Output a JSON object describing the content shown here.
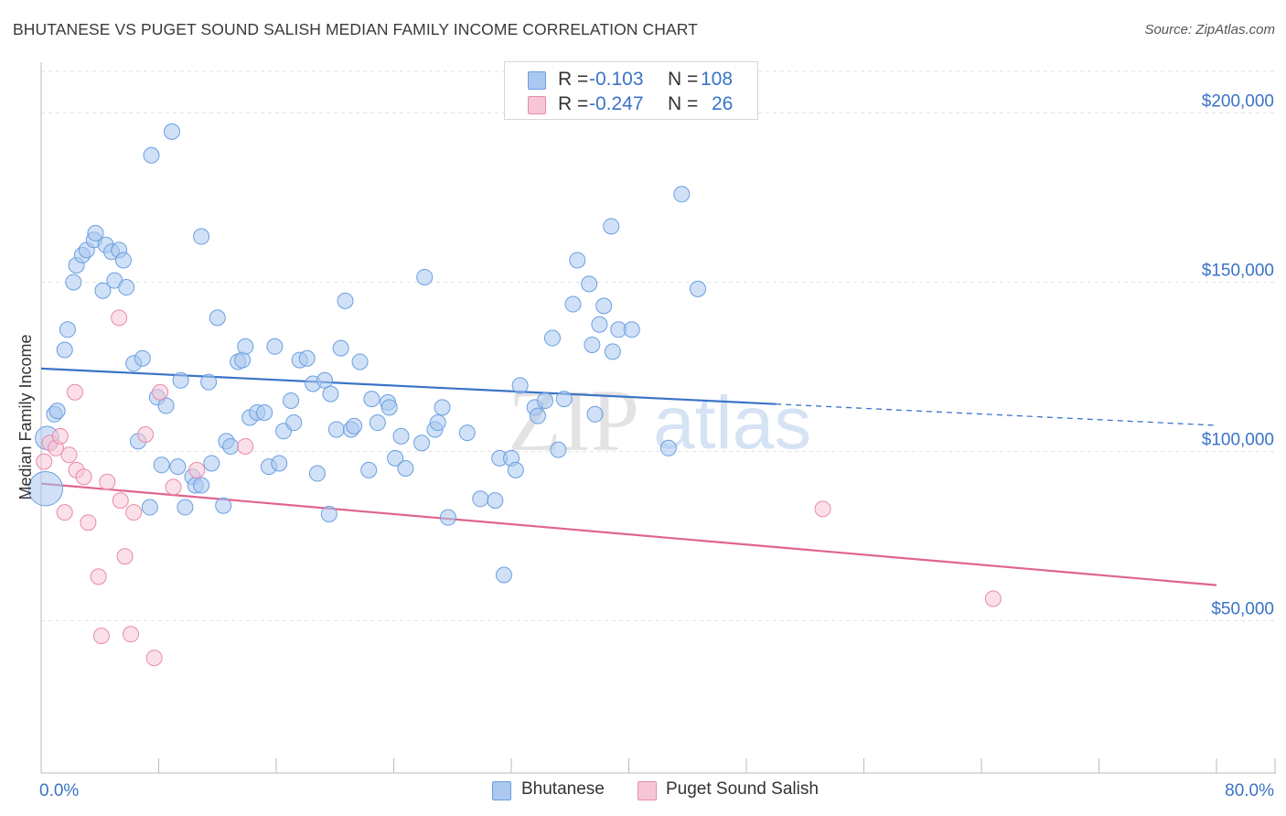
{
  "title": "BHUTANESE VS PUGET SOUND SALISH MEDIAN FAMILY INCOME CORRELATION CHART",
  "source": "Source: ZipAtlas.com",
  "watermark": {
    "part1": "ZIP",
    "part2": "atlas"
  },
  "legend": {
    "rows": [
      {
        "r_label": "R =",
        "r_value": "-0.103",
        "n_label": "N =",
        "n_value": "108",
        "color": "#aac8f0",
        "border": "#6a9fe0"
      },
      {
        "r_label": "R =",
        "r_value": "-0.247",
        "n_label": "N =",
        "n_value": "26",
        "color": "#f7c6d6",
        "border": "#e88aaa"
      }
    ]
  },
  "bottom_legend": [
    {
      "label": "Bhutanese",
      "color": "#aac8f0",
      "border": "#6a9fe0"
    },
    {
      "label": "Puget Sound Salish",
      "color": "#f7c6d6",
      "border": "#e88aaa"
    }
  ],
  "chart_data": {
    "type": "scatter",
    "ylabel": "Median Family Income",
    "xlabel": "",
    "x_tick_labels": {
      "min": "0.0%",
      "max": "80.0%"
    },
    "xlim": [
      0,
      80
    ],
    "ylim": [
      5000,
      215000
    ],
    "y_ticks": [
      {
        "value": 50000,
        "label": "$50,000"
      },
      {
        "value": 100000,
        "label": "$100,000"
      },
      {
        "value": 150000,
        "label": "$150,000"
      },
      {
        "value": 200000,
        "label": "$200,000"
      }
    ],
    "grid": true,
    "colors": {
      "bhutanese_fill": "#aac8f0",
      "bhutanese_stroke": "#6a9fe0",
      "bhutanese_line": "#3a73c6",
      "salish_fill": "#f7c6d6",
      "salish_stroke": "#e88aaa",
      "salish_line": "#e0648e",
      "tick_label": "#3a73c6",
      "grid": "#e2e2e2",
      "axis": "#bbbbbb"
    },
    "series": [
      {
        "name": "Bhutanese",
        "trend": {
          "x1": 0,
          "y1": 124500,
          "x2": 50,
          "y2": 114000,
          "dash_to_x": 80,
          "dash_to_y": 107700
        },
        "points": [
          [
            0.4,
            104000,
            1.5
          ],
          [
            0.3,
            89000,
            2.2
          ],
          [
            0.9,
            111000,
            1
          ],
          [
            1.1,
            112000,
            1
          ],
          [
            1.6,
            130000,
            1
          ],
          [
            1.8,
            136000,
            1
          ],
          [
            2.2,
            150000,
            1
          ],
          [
            2.4,
            155000,
            1
          ],
          [
            2.8,
            158000,
            1
          ],
          [
            3.1,
            159500,
            1
          ],
          [
            3.6,
            162500,
            1
          ],
          [
            3.7,
            164500,
            1
          ],
          [
            4.2,
            147500,
            1
          ],
          [
            4.4,
            161000,
            1
          ],
          [
            4.8,
            159000,
            1
          ],
          [
            5.0,
            150500,
            1
          ],
          [
            5.3,
            159500,
            1
          ],
          [
            5.6,
            156500,
            1
          ],
          [
            5.8,
            148500,
            1
          ],
          [
            6.3,
            126000,
            1
          ],
          [
            6.6,
            103000,
            1
          ],
          [
            6.9,
            127500,
            1
          ],
          [
            7.4,
            83500,
            1
          ],
          [
            7.5,
            187500,
            1
          ],
          [
            7.9,
            116000,
            1
          ],
          [
            8.2,
            96000,
            1
          ],
          [
            8.5,
            113500,
            1
          ],
          [
            8.9,
            194500,
            1
          ],
          [
            9.3,
            95500,
            1
          ],
          [
            9.5,
            121000,
            1
          ],
          [
            9.8,
            83500,
            1
          ],
          [
            10.3,
            92500,
            1
          ],
          [
            10.5,
            90000,
            1
          ],
          [
            10.9,
            90000,
            1
          ],
          [
            10.9,
            163500,
            1
          ],
          [
            11.4,
            120500,
            1
          ],
          [
            11.6,
            96500,
            1
          ],
          [
            12.0,
            139500,
            1
          ],
          [
            12.4,
            84000,
            1
          ],
          [
            12.6,
            103000,
            1
          ],
          [
            12.9,
            101500,
            1
          ],
          [
            13.4,
            126500,
            1
          ],
          [
            13.7,
            127000,
            1
          ],
          [
            13.9,
            131000,
            1
          ],
          [
            14.2,
            110000,
            1
          ],
          [
            14.7,
            111500,
            1
          ],
          [
            15.2,
            111500,
            1
          ],
          [
            15.5,
            95500,
            1
          ],
          [
            15.9,
            131000,
            1
          ],
          [
            16.2,
            96500,
            1
          ],
          [
            16.5,
            106000,
            1
          ],
          [
            17.0,
            115000,
            1
          ],
          [
            17.2,
            108500,
            1
          ],
          [
            17.6,
            127000,
            1
          ],
          [
            18.1,
            127500,
            1
          ],
          [
            18.5,
            120000,
            1
          ],
          [
            18.8,
            93500,
            1
          ],
          [
            19.3,
            121000,
            1
          ],
          [
            19.6,
            81500,
            1
          ],
          [
            19.7,
            117000,
            1
          ],
          [
            20.1,
            106500,
            1
          ],
          [
            20.4,
            130500,
            1
          ],
          [
            20.7,
            144500,
            1
          ],
          [
            21.1,
            106500,
            1
          ],
          [
            21.3,
            107500,
            1
          ],
          [
            21.7,
            126500,
            1
          ],
          [
            22.3,
            94500,
            1
          ],
          [
            22.5,
            115500,
            1
          ],
          [
            22.9,
            108500,
            1
          ],
          [
            23.6,
            114500,
            1
          ],
          [
            23.7,
            113000,
            1
          ],
          [
            24.1,
            98000,
            1
          ],
          [
            24.5,
            104500,
            1
          ],
          [
            24.8,
            95000,
            1
          ],
          [
            25.9,
            102500,
            1
          ],
          [
            26.1,
            151500,
            1
          ],
          [
            26.8,
            106500,
            1
          ],
          [
            27.0,
            108500,
            1
          ],
          [
            27.3,
            113000,
            1
          ],
          [
            27.7,
            80500,
            1
          ],
          [
            29.0,
            105500,
            1
          ],
          [
            29.9,
            86000,
            1
          ],
          [
            30.9,
            85500,
            1
          ],
          [
            31.2,
            98000,
            1
          ],
          [
            31.5,
            63500,
            1
          ],
          [
            32.0,
            98000,
            1
          ],
          [
            32.3,
            94500,
            1
          ],
          [
            32.6,
            119500,
            1
          ],
          [
            33.6,
            113000,
            1
          ],
          [
            33.8,
            110500,
            1
          ],
          [
            34.3,
            115000,
            1
          ],
          [
            34.8,
            133500,
            1
          ],
          [
            35.2,
            100500,
            1
          ],
          [
            35.6,
            115500,
            1
          ],
          [
            36.2,
            143500,
            1
          ],
          [
            36.5,
            156500,
            1
          ],
          [
            37.3,
            149500,
            1
          ],
          [
            37.5,
            131500,
            1
          ],
          [
            37.7,
            111000,
            1
          ],
          [
            38.0,
            137500,
            1
          ],
          [
            38.3,
            143000,
            1
          ],
          [
            38.8,
            166500,
            1
          ],
          [
            38.9,
            129500,
            1
          ],
          [
            39.3,
            136000,
            1
          ],
          [
            40.2,
            136000,
            1
          ],
          [
            42.7,
            101000,
            1
          ],
          [
            43.6,
            176000,
            1
          ],
          [
            44.7,
            148000,
            1
          ]
        ]
      },
      {
        "name": "Puget Sound Salish",
        "trend": {
          "x1": 0,
          "y1": 90500,
          "x2": 80,
          "y2": 60500
        },
        "points": [
          [
            0.2,
            97000,
            1
          ],
          [
            0.6,
            102500,
            1
          ],
          [
            1.0,
            101000,
            1
          ],
          [
            1.3,
            104500,
            1
          ],
          [
            1.6,
            82000,
            1
          ],
          [
            1.9,
            99000,
            1
          ],
          [
            2.3,
            117500,
            1
          ],
          [
            2.4,
            94500,
            1
          ],
          [
            2.9,
            92500,
            1
          ],
          [
            3.2,
            79000,
            1
          ],
          [
            3.9,
            63000,
            1
          ],
          [
            4.1,
            45500,
            1
          ],
          [
            4.5,
            91000,
            1
          ],
          [
            5.3,
            139500,
            1
          ],
          [
            5.4,
            85500,
            1
          ],
          [
            5.7,
            69000,
            1
          ],
          [
            6.1,
            46000,
            1
          ],
          [
            6.3,
            82000,
            1
          ],
          [
            7.1,
            105000,
            1
          ],
          [
            7.7,
            39000,
            1
          ],
          [
            8.1,
            117500,
            1
          ],
          [
            9.0,
            89500,
            1
          ],
          [
            10.6,
            94500,
            1
          ],
          [
            13.9,
            101500,
            1
          ],
          [
            53.2,
            83000,
            1
          ],
          [
            64.8,
            56500,
            1
          ]
        ]
      }
    ]
  }
}
